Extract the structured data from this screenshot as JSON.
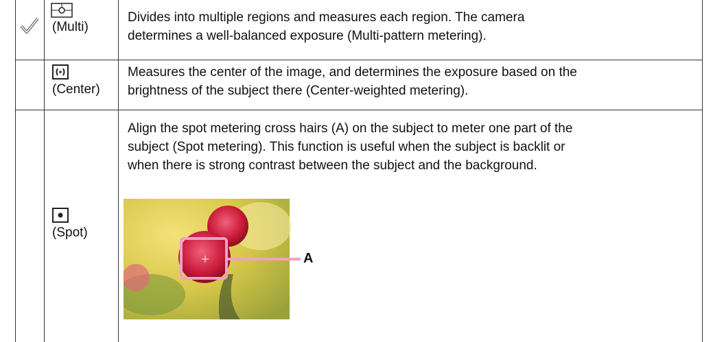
{
  "table": {
    "rows": [
      {
        "mode": "(Multi)",
        "description": [
          "Divides into multiple regions and measures each region. The camera",
          "determines a well-balanced exposure (Multi-pattern metering)."
        ]
      },
      {
        "mode": "(Center)",
        "description": [
          "Measures the center of the image, and determines the exposure based on the",
          "brightness of the subject there (Center-weighted metering)."
        ]
      },
      {
        "mode": "(Spot)",
        "description": [
          "Align the spot metering cross hairs (A) on the subject to meter one part of the",
          "subject (Spot metering). This function is useful when the subject is backlit or",
          "when there is strong contrast between the subject and the background."
        ],
        "figure_label": "A"
      }
    ]
  }
}
